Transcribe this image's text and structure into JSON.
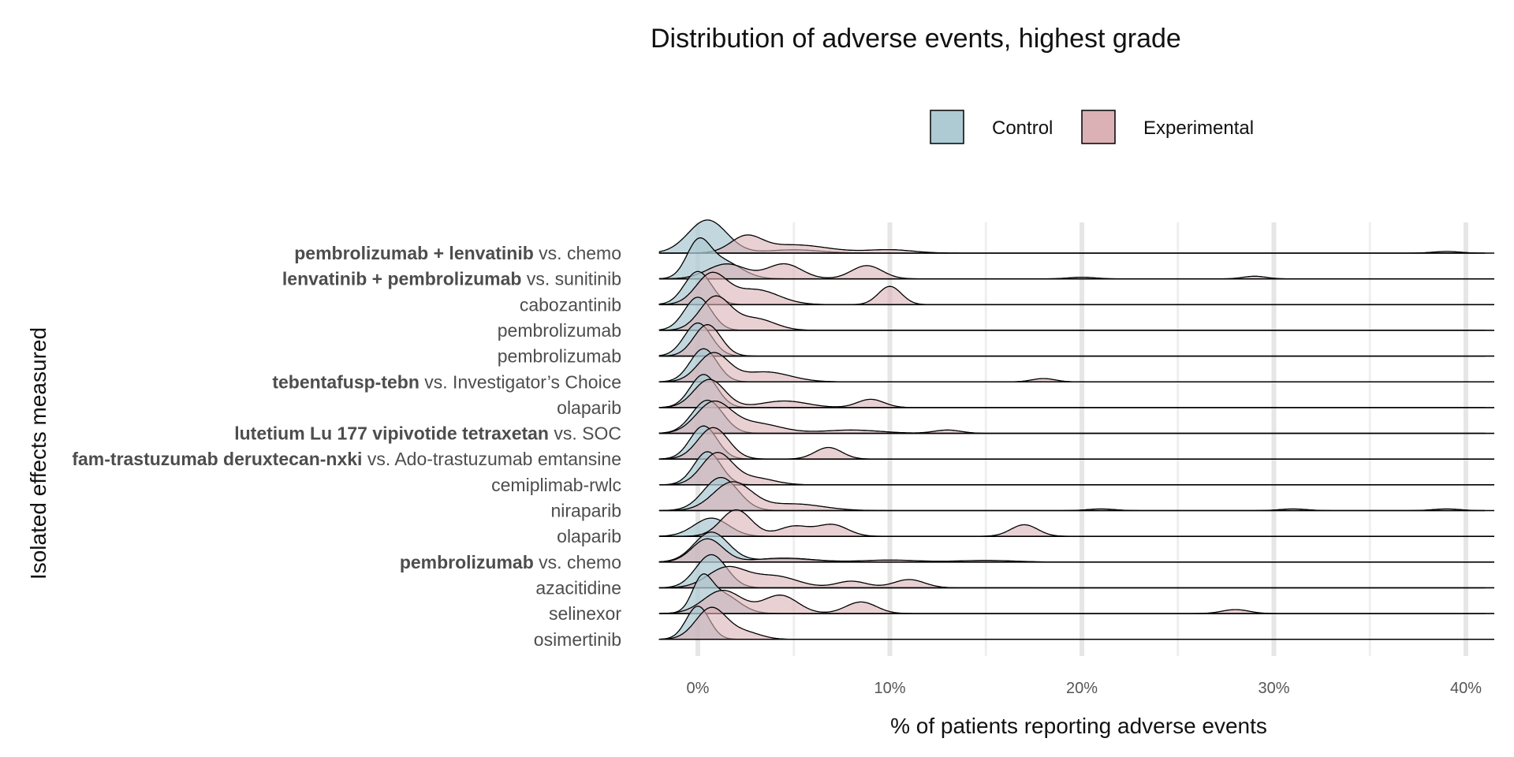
{
  "chart_data": {
    "type": "ridgeline",
    "title": "Distribution of adverse events, highest grade",
    "xlabel": "% of patients reporting adverse events",
    "ylabel": "Isolated effects measured",
    "xlim": [
      -2,
      41
    ],
    "xticks": [
      0,
      10,
      20,
      30,
      40
    ],
    "xtick_labels": [
      "0%",
      "10%",
      "20%",
      "30%",
      "40%"
    ],
    "grid": true,
    "legend": {
      "position": "top",
      "entries": [
        {
          "name": "Control",
          "color": "#aecbd3"
        },
        {
          "name": "Experimental",
          "color": "#dbb1b6"
        }
      ]
    },
    "rows": [
      {
        "label": "pembrolizumab + lenvatinib",
        "suffix": " vs. chemo",
        "control": [
          [
            0.5,
            1.0,
            1.0
          ],
          [
            5,
            1.4,
            0.1
          ]
        ],
        "experimental": [
          [
            2.5,
            0.8,
            0.45
          ],
          [
            5,
            1.8,
            0.25
          ],
          [
            10,
            1.2,
            0.1
          ],
          [
            39,
            0.7,
            0.05
          ]
        ]
      },
      {
        "label": "lenvatinib + pembrolizumab",
        "suffix": " vs. sunitinib",
        "control": [
          [
            0,
            0.6,
            0.95
          ],
          [
            1.2,
            1.0,
            0.55
          ]
        ],
        "experimental": [
          [
            1.5,
            1.0,
            0.45
          ],
          [
            4.5,
            0.9,
            0.45
          ],
          [
            8.8,
            0.8,
            0.4
          ],
          [
            20,
            0.7,
            0.05
          ],
          [
            29,
            0.6,
            0.08
          ]
        ]
      },
      {
        "label": "cabozantinib",
        "suffix": "",
        "control": [
          [
            0,
            0.7,
            1.0
          ]
        ],
        "experimental": [
          [
            0.7,
            0.8,
            0.9
          ],
          [
            3,
            1.2,
            0.45
          ],
          [
            10,
            0.6,
            0.55
          ]
        ]
      },
      {
        "label": "pembrolizumab",
        "suffix": "",
        "control": [
          [
            0,
            0.7,
            1.0
          ]
        ],
        "experimental": [
          [
            0.9,
            0.8,
            1.0
          ],
          [
            3,
            1.0,
            0.35
          ]
        ]
      },
      {
        "label": "pembrolizumab",
        "suffix": "",
        "control": [
          [
            0,
            0.7,
            1.0
          ]
        ],
        "experimental": [
          [
            0.5,
            0.7,
            0.95
          ]
        ]
      },
      {
        "label": "tebentafusp-tebn",
        "suffix": " vs. Investigator’s Choice",
        "control": [
          [
            0.3,
            0.7,
            1.0
          ]
        ],
        "experimental": [
          [
            0.8,
            0.8,
            0.85
          ],
          [
            3.5,
            1.3,
            0.3
          ],
          [
            18,
            0.6,
            0.1
          ]
        ]
      },
      {
        "label": "olaparib",
        "suffix": "",
        "control": [
          [
            0.3,
            0.7,
            1.0
          ]
        ],
        "experimental": [
          [
            0.6,
            0.8,
            0.85
          ],
          [
            4.5,
            1.2,
            0.2
          ],
          [
            9,
            0.7,
            0.25
          ]
        ]
      },
      {
        "label": "lutetium Lu 177 vipivotide tetraxetan",
        "suffix": " vs. SOC",
        "control": [
          [
            0.5,
            0.8,
            1.0
          ]
        ],
        "experimental": [
          [
            0.8,
            0.9,
            0.9
          ],
          [
            3,
            1.3,
            0.3
          ],
          [
            8,
            1.5,
            0.1
          ],
          [
            13,
            0.7,
            0.1
          ]
        ]
      },
      {
        "label": "fam-trastuzumab deruxtecan-nxki",
        "suffix": " vs. Ado-trastuzumab emtansine",
        "control": [
          [
            0.3,
            0.7,
            1.0
          ]
        ],
        "experimental": [
          [
            0.8,
            0.8,
            0.95
          ],
          [
            6.8,
            0.7,
            0.35
          ]
        ]
      },
      {
        "label": "cemiplimab-rwlc",
        "suffix": "",
        "control": [
          [
            0.5,
            0.7,
            1.0
          ]
        ],
        "experimental": [
          [
            1.0,
            0.8,
            0.95
          ],
          [
            3,
            1.0,
            0.2
          ]
        ]
      },
      {
        "label": "niraparib",
        "suffix": "",
        "control": [
          [
            1.2,
            0.9,
            1.0
          ]
        ],
        "experimental": [
          [
            1.8,
            1.0,
            0.85
          ],
          [
            5,
            1.5,
            0.2
          ],
          [
            21,
            0.7,
            0.05
          ],
          [
            31,
            0.7,
            0.05
          ],
          [
            39,
            0.7,
            0.05
          ]
        ]
      },
      {
        "label": "olaparib",
        "suffix": "",
        "control": [
          [
            0.7,
            0.9,
            0.55
          ]
        ],
        "experimental": [
          [
            2,
            0.8,
            0.8
          ],
          [
            5,
            0.8,
            0.3
          ],
          [
            7,
            0.8,
            0.35
          ],
          [
            17,
            0.7,
            0.35
          ]
        ]
      },
      {
        "label": "pembrolizumab",
        "suffix": " vs. chemo",
        "control": [
          [
            0.7,
            0.9,
            0.9
          ],
          [
            4.5,
            1.5,
            0.1
          ]
        ],
        "experimental": [
          [
            0.5,
            0.8,
            0.7
          ],
          [
            4.5,
            1.5,
            0.12
          ],
          [
            10,
            1.5,
            0.06
          ],
          [
            15,
            1.5,
            0.05
          ]
        ]
      },
      {
        "label": "azacitidine",
        "suffix": "",
        "control": [
          [
            0.7,
            0.8,
            1.0
          ]
        ],
        "experimental": [
          [
            1.5,
            1.0,
            0.6
          ],
          [
            4,
            1.2,
            0.35
          ],
          [
            8,
            0.8,
            0.2
          ],
          [
            11,
            0.8,
            0.25
          ]
        ]
      },
      {
        "label": "selinexor",
        "suffix": "",
        "control": [
          [
            0.2,
            0.5,
            0.85
          ],
          [
            1.2,
            0.9,
            0.6
          ]
        ],
        "experimental": [
          [
            1.3,
            1.0,
            0.7
          ],
          [
            4.3,
            0.9,
            0.55
          ],
          [
            8.5,
            0.8,
            0.35
          ],
          [
            28,
            0.7,
            0.12
          ]
        ]
      },
      {
        "label": "osimertinib",
        "suffix": "",
        "control": [
          [
            0,
            0.6,
            1.0
          ]
        ],
        "experimental": [
          [
            0.7,
            0.8,
            0.95
          ],
          [
            2.5,
            0.8,
            0.2
          ]
        ]
      }
    ]
  }
}
